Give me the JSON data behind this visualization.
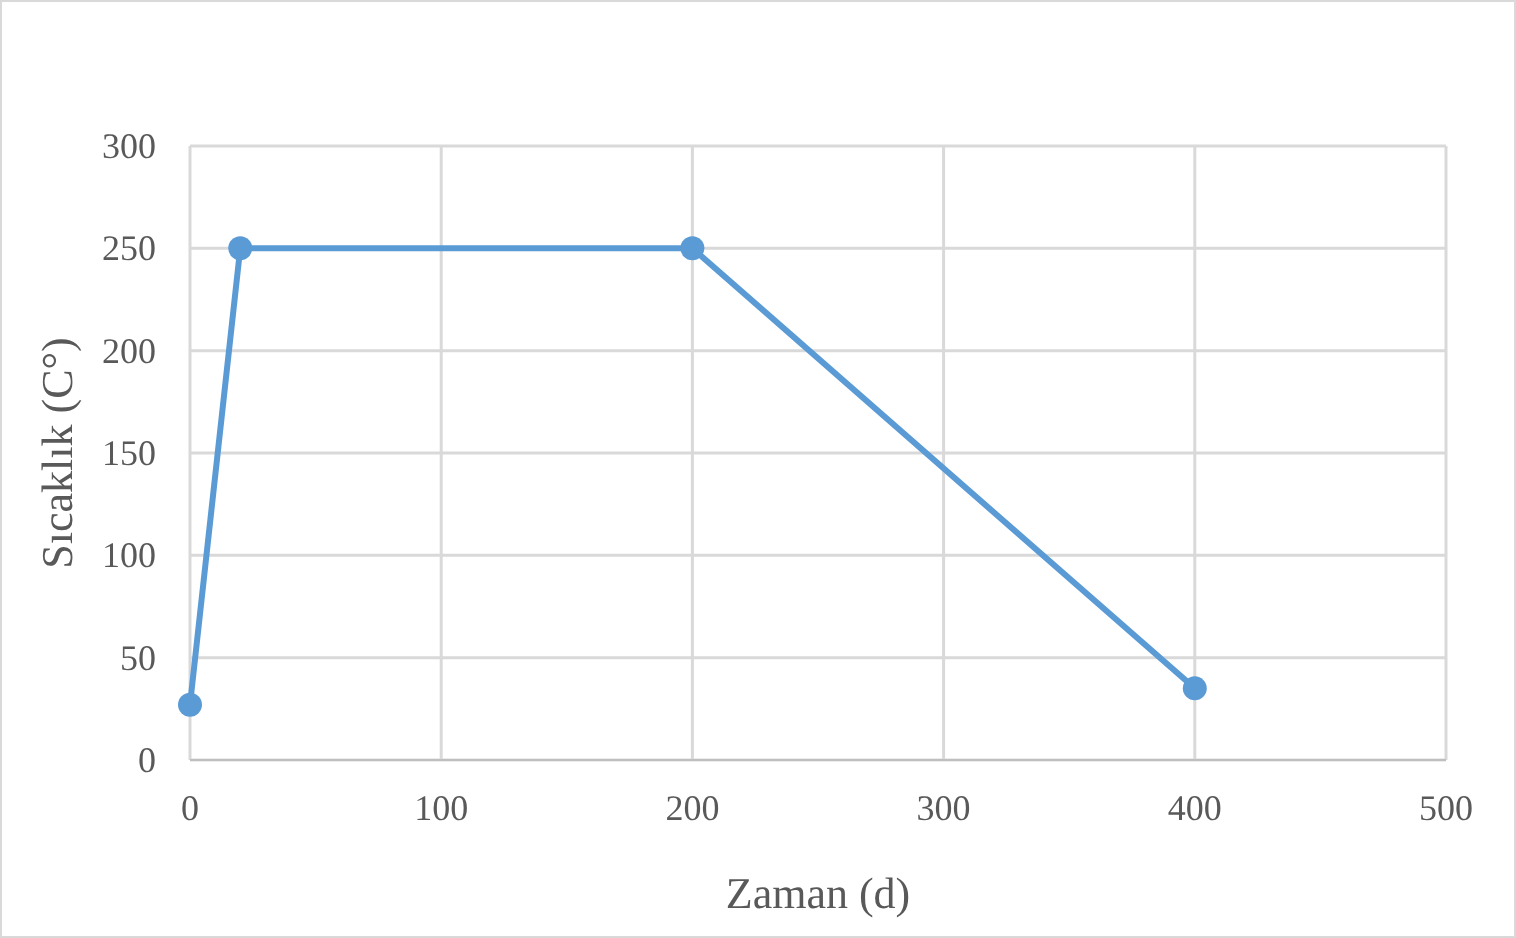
{
  "chart_data": {
    "type": "line",
    "xlabel": "Zaman (d)",
    "ylabel": "Sıcaklık (C°)",
    "x": [
      0,
      20,
      200,
      400
    ],
    "series": [
      {
        "color": "#5b9bd5",
        "values": [
          27,
          250,
          250,
          35
        ]
      }
    ],
    "xlim": [
      0,
      500
    ],
    "xticks": [
      0,
      100,
      200,
      300,
      400,
      500
    ],
    "ylim": [
      0,
      300
    ],
    "yticks": [
      0,
      50,
      100,
      150,
      200,
      250,
      300
    ],
    "grid": true,
    "marker": "circle",
    "line_style": "solid"
  }
}
